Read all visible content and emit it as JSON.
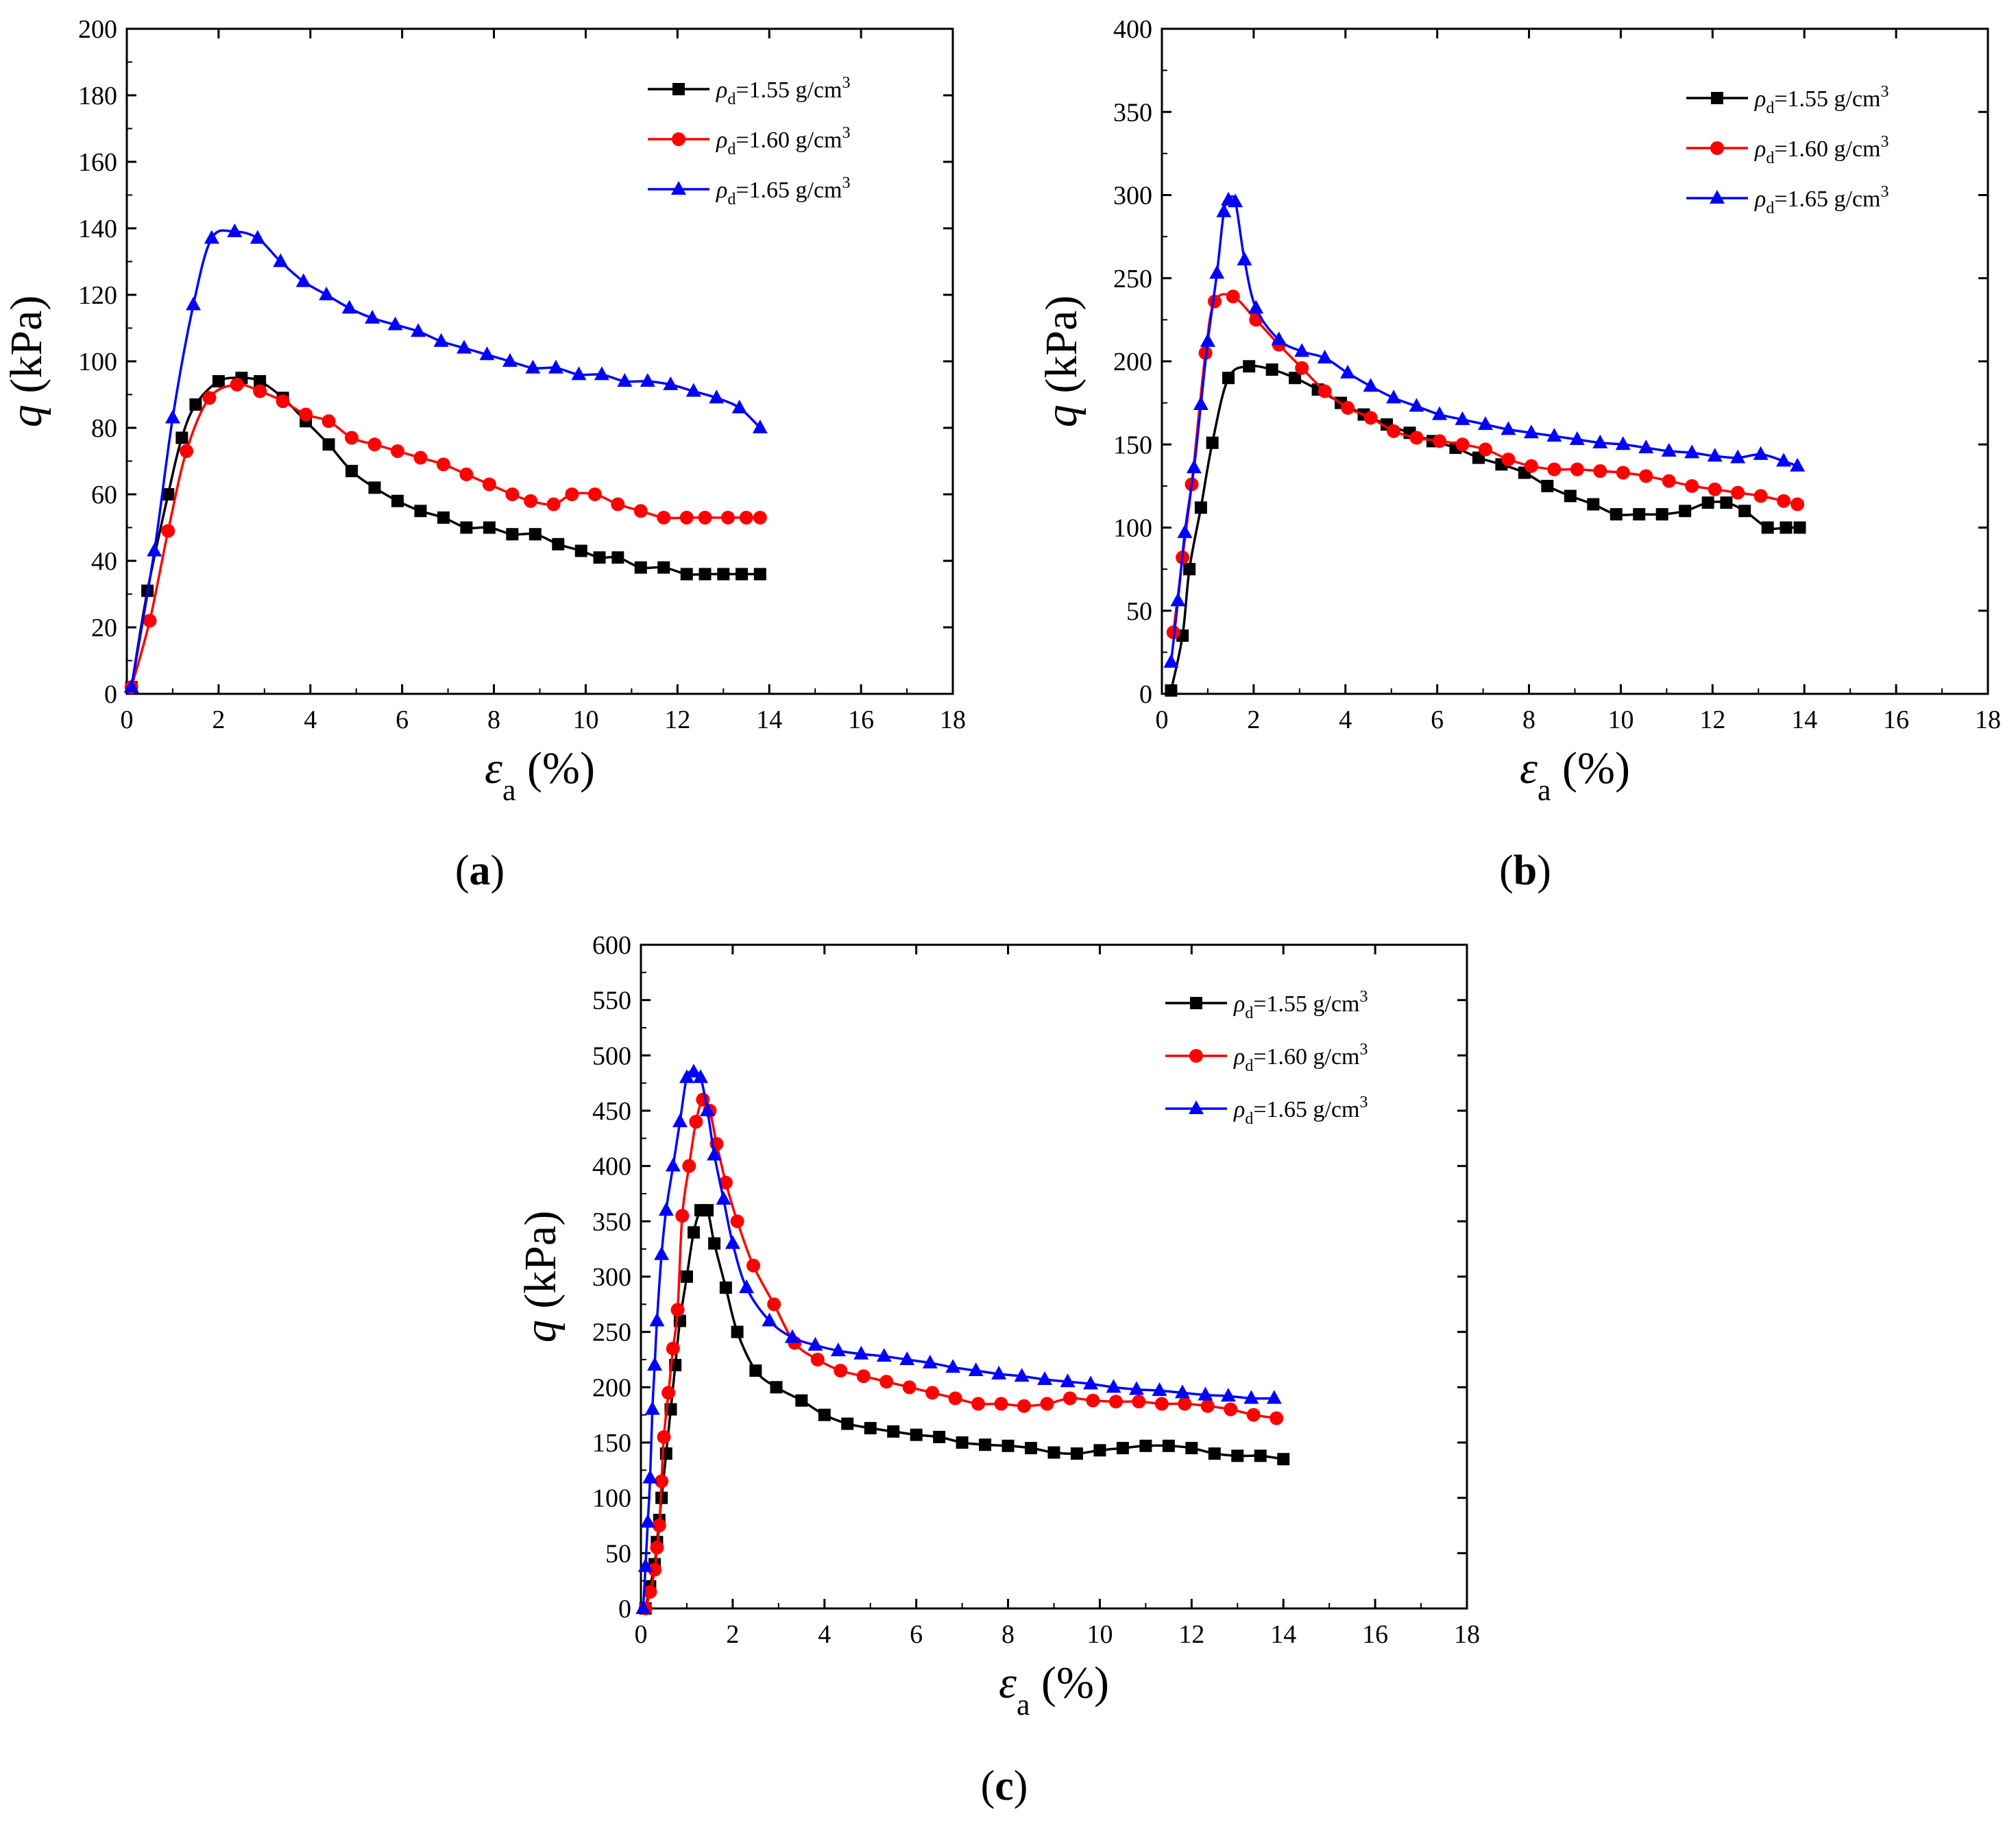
{
  "figure": {
    "legend_labels": [
      "ρd=1.55 g/cm3",
      "ρd=1.60 g/cm3",
      "ρd=1.65 g/cm3"
    ],
    "series_colors": [
      "#000000",
      "#ff0000",
      "#0000ff"
    ],
    "series_markers": [
      "square",
      "circle",
      "triangle"
    ]
  },
  "chart_data": [
    {
      "panel": "a",
      "caption": "(a)",
      "type": "line",
      "xlabel": "εa (%)",
      "ylabel": "q (kPa)",
      "xlim": [
        0,
        18
      ],
      "ylim": [
        0,
        200
      ],
      "xticks": [
        0,
        2,
        4,
        6,
        8,
        10,
        12,
        14,
        16,
        18
      ],
      "yticks": [
        0,
        20,
        40,
        60,
        80,
        100,
        120,
        140,
        160,
        180,
        200
      ],
      "series": [
        {
          "name": "ρd=1.55 g/cm3",
          "x": [
            0.1,
            0.45,
            0.9,
            1.2,
            1.5,
            2.0,
            2.5,
            2.9,
            3.4,
            3.9,
            4.4,
            4.9,
            5.4,
            5.9,
            6.4,
            6.9,
            7.4,
            7.9,
            8.4,
            8.9,
            9.4,
            9.9,
            10.3,
            10.7,
            11.2,
            11.7,
            12.2,
            12.6,
            13.0,
            13.4,
            13.8
          ],
          "y": [
            2,
            31,
            60,
            77,
            87,
            94,
            95,
            94,
            89,
            82,
            75,
            67,
            62,
            58,
            55,
            53,
            50,
            50,
            48,
            48,
            45,
            43,
            41,
            41,
            38,
            38,
            36,
            36,
            36,
            36,
            36
          ]
        },
        {
          "name": "ρd=1.60 g/cm3",
          "x": [
            0.1,
            0.5,
            0.9,
            1.3,
            1.8,
            2.4,
            2.9,
            3.4,
            3.9,
            4.4,
            4.9,
            5.4,
            5.9,
            6.4,
            6.9,
            7.4,
            7.9,
            8.4,
            8.8,
            9.3,
            9.7,
            10.2,
            10.7,
            11.2,
            11.7,
            12.2,
            12.6,
            13.1,
            13.5,
            13.8
          ],
          "y": [
            2,
            22,
            49,
            73,
            89,
            93,
            91,
            88,
            84,
            82,
            77,
            75,
            73,
            71,
            69,
            66,
            63,
            60,
            58,
            57,
            60,
            60,
            57,
            55,
            53,
            53,
            53,
            53,
            53,
            53
          ]
        },
        {
          "name": "ρd=1.65 g/cm3",
          "x": [
            0.1,
            0.6,
            1.0,
            1.45,
            1.85,
            2.35,
            2.85,
            3.35,
            3.85,
            4.35,
            4.85,
            5.35,
            5.85,
            6.35,
            6.85,
            7.35,
            7.85,
            8.35,
            8.85,
            9.35,
            9.85,
            10.35,
            10.85,
            11.35,
            11.85,
            12.35,
            12.85,
            13.35,
            13.8
          ],
          "y": [
            2,
            43,
            83,
            117,
            137,
            139,
            137,
            130,
            124,
            120,
            116,
            113,
            111,
            109,
            106,
            104,
            102,
            100,
            98,
            98,
            96,
            96,
            94,
            94,
            93,
            91,
            89,
            86,
            80
          ]
        }
      ]
    },
    {
      "panel": "b",
      "caption": "(b)",
      "type": "line",
      "xlabel": "εa (%)",
      "ylabel": "q (kPa)",
      "xlim": [
        0,
        18
      ],
      "ylim": [
        0,
        400
      ],
      "xticks": [
        0,
        2,
        4,
        6,
        8,
        10,
        12,
        14,
        16,
        18
      ],
      "yticks": [
        0,
        50,
        100,
        150,
        200,
        250,
        300,
        350,
        400
      ],
      "series": [
        {
          "name": "ρd=1.55 g/cm3",
          "x": [
            0.2,
            0.45,
            0.6,
            0.85,
            1.1,
            1.45,
            1.9,
            2.4,
            2.9,
            3.4,
            3.9,
            4.4,
            4.9,
            5.4,
            5.9,
            6.4,
            6.9,
            7.4,
            7.9,
            8.4,
            8.9,
            9.4,
            9.9,
            10.4,
            10.9,
            11.4,
            11.9,
            12.3,
            12.7,
            13.2,
            13.6,
            13.9
          ],
          "y": [
            2,
            35,
            75,
            112,
            151,
            190,
            197,
            195,
            190,
            183,
            175,
            168,
            162,
            157,
            152,
            148,
            142,
            138,
            133,
            125,
            119,
            114,
            108,
            108,
            108,
            110,
            115,
            115,
            110,
            100,
            100,
            100
          ]
        },
        {
          "name": "ρd=1.60 g/cm3",
          "x": [
            0.25,
            0.45,
            0.65,
            0.95,
            1.15,
            1.55,
            2.05,
            2.55,
            3.05,
            3.55,
            4.05,
            4.55,
            5.05,
            5.55,
            6.05,
            6.55,
            7.05,
            7.55,
            8.05,
            8.55,
            9.05,
            9.55,
            10.05,
            10.55,
            11.05,
            11.55,
            12.05,
            12.55,
            13.05,
            13.55,
            13.85
          ],
          "y": [
            37,
            82,
            126,
            205,
            236,
            239,
            225,
            210,
            196,
            182,
            172,
            166,
            158,
            154,
            152,
            150,
            147,
            141,
            137,
            135,
            135,
            134,
            133,
            131,
            128,
            125,
            123,
            121,
            119,
            116,
            114
          ]
        },
        {
          "name": "ρd=1.65 g/cm3",
          "x": [
            0.2,
            0.35,
            0.5,
            0.7,
            0.85,
            1.0,
            1.2,
            1.35,
            1.45,
            1.6,
            1.8,
            2.05,
            2.55,
            3.05,
            3.55,
            4.05,
            4.55,
            5.05,
            5.55,
            6.05,
            6.55,
            7.05,
            7.55,
            8.05,
            8.55,
            9.05,
            9.55,
            10.05,
            10.55,
            11.05,
            11.55,
            12.05,
            12.55,
            13.05,
            13.55,
            13.85
          ],
          "y": [
            19,
            56,
            97,
            136,
            174,
            212,
            253,
            290,
            297,
            296,
            261,
            232,
            213,
            206,
            202,
            193,
            185,
            178,
            173,
            168,
            165,
            162,
            159,
            157,
            155,
            153,
            151,
            150,
            148,
            146,
            145,
            143,
            142,
            144,
            140,
            137
          ]
        }
      ]
    },
    {
      "panel": "c",
      "caption": "(c)",
      "type": "line",
      "xlabel": "εa (%)",
      "ylabel": "q (kPa)",
      "xlim": [
        0,
        18
      ],
      "ylim": [
        0,
        600
      ],
      "xticks": [
        0,
        2,
        4,
        6,
        8,
        10,
        12,
        14,
        16,
        18
      ],
      "yticks": [
        0,
        50,
        100,
        150,
        200,
        250,
        300,
        350,
        400,
        450,
        500,
        550,
        600
      ],
      "series": [
        {
          "name": "ρd=1.55 g/cm3",
          "x": [
            0.1,
            0.2,
            0.3,
            0.35,
            0.4,
            0.45,
            0.55,
            0.65,
            0.75,
            0.85,
            1.0,
            1.15,
            1.3,
            1.45,
            1.6,
            1.85,
            2.1,
            2.5,
            2.95,
            3.5,
            4.0,
            4.5,
            5.0,
            5.5,
            6.0,
            6.5,
            7.0,
            7.5,
            8.0,
            8.5,
            9.0,
            9.5,
            10.0,
            10.5,
            11.0,
            11.5,
            12.0,
            12.5,
            13.0,
            13.5,
            14.0
          ],
          "y": [
            0,
            20,
            40,
            60,
            80,
            100,
            140,
            180,
            220,
            260,
            300,
            340,
            360,
            360,
            330,
            290,
            250,
            215,
            200,
            188,
            175,
            167,
            163,
            160,
            157,
            155,
            150,
            148,
            147,
            145,
            141,
            140,
            143,
            145,
            147,
            147,
            145,
            140,
            138,
            138,
            135
          ]
        },
        {
          "name": "ρd=1.60 g/cm3",
          "x": [
            0.1,
            0.2,
            0.3,
            0.35,
            0.4,
            0.45,
            0.5,
            0.6,
            0.7,
            0.8,
            0.9,
            1.05,
            1.2,
            1.35,
            1.5,
            1.65,
            1.85,
            2.1,
            2.45,
            2.9,
            3.35,
            3.85,
            4.35,
            4.85,
            5.35,
            5.85,
            6.35,
            6.85,
            7.35,
            7.85,
            8.35,
            8.85,
            9.35,
            9.85,
            10.35,
            10.85,
            11.35,
            11.85,
            12.35,
            12.85,
            13.35,
            13.85
          ],
          "y": [
            0,
            15,
            35,
            55,
            75,
            115,
            155,
            195,
            235,
            270,
            355,
            400,
            440,
            460,
            450,
            420,
            385,
            350,
            310,
            275,
            240,
            225,
            215,
            210,
            205,
            200,
            195,
            190,
            185,
            185,
            183,
            185,
            190,
            188,
            187,
            187,
            185,
            185,
            183,
            180,
            175,
            172
          ]
        },
        {
          "name": "ρd=1.65 g/cm3",
          "x": [
            0.05,
            0.1,
            0.15,
            0.2,
            0.25,
            0.3,
            0.35,
            0.45,
            0.55,
            0.7,
            0.85,
            1.0,
            1.15,
            1.3,
            1.45,
            1.6,
            1.8,
            2.0,
            2.3,
            2.8,
            3.3,
            3.8,
            4.3,
            4.8,
            5.3,
            5.8,
            6.3,
            6.8,
            7.3,
            7.8,
            8.3,
            8.8,
            9.3,
            9.8,
            10.3,
            10.8,
            11.3,
            11.8,
            12.3,
            12.8,
            13.3,
            13.8
          ],
          "y": [
            0,
            38,
            78,
            118,
            180,
            220,
            260,
            320,
            360,
            400,
            440,
            480,
            485,
            480,
            450,
            410,
            370,
            330,
            290,
            260,
            245,
            238,
            233,
            230,
            228,
            225,
            222,
            218,
            215,
            212,
            210,
            207,
            205,
            203,
            200,
            198,
            197,
            195,
            193,
            192,
            190,
            190
          ]
        }
      ]
    }
  ]
}
